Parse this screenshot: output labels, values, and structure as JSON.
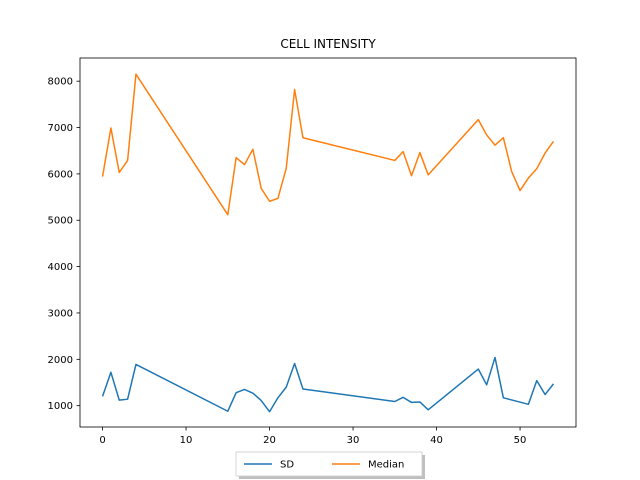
{
  "chart_data": {
    "type": "line",
    "title": "CELL INTENSITY",
    "xlabel": "",
    "ylabel": "",
    "xlim": [
      -2.7,
      56.7
    ],
    "ylim": [
      540,
      8500
    ],
    "xticks": [
      0,
      10,
      20,
      30,
      40,
      50
    ],
    "yticks": [
      1000,
      2000,
      3000,
      4000,
      5000,
      6000,
      7000,
      8000
    ],
    "grid": false,
    "legend_position": "bottom-center",
    "series": [
      {
        "name": "SD",
        "color": "#1f77b4",
        "points": [
          [
            0,
            1200
          ],
          [
            1,
            1720
          ],
          [
            2,
            1120
          ],
          [
            3,
            1140
          ],
          [
            4,
            1890
          ],
          [
            15,
            880
          ],
          [
            16,
            1280
          ],
          [
            17,
            1350
          ],
          [
            18,
            1270
          ],
          [
            19,
            1110
          ],
          [
            20,
            870
          ],
          [
            21,
            1170
          ],
          [
            22,
            1400
          ],
          [
            23,
            1910
          ],
          [
            24,
            1360
          ],
          [
            35,
            1090
          ],
          [
            36,
            1180
          ],
          [
            37,
            1070
          ],
          [
            38,
            1080
          ],
          [
            39,
            910
          ],
          [
            45,
            1790
          ],
          [
            46,
            1450
          ],
          [
            47,
            2040
          ],
          [
            48,
            1170
          ],
          [
            51,
            1030
          ],
          [
            52,
            1540
          ],
          [
            53,
            1240
          ],
          [
            54,
            1470
          ]
        ]
      },
      {
        "name": "Median",
        "color": "#ff7f0e",
        "points": [
          [
            0,
            5940
          ],
          [
            1,
            6990
          ],
          [
            2,
            6030
          ],
          [
            3,
            6290
          ],
          [
            4,
            8150
          ],
          [
            15,
            5120
          ],
          [
            16,
            6350
          ],
          [
            17,
            6200
          ],
          [
            18,
            6530
          ],
          [
            19,
            5690
          ],
          [
            20,
            5410
          ],
          [
            21,
            5470
          ],
          [
            22,
            6120
          ],
          [
            23,
            7820
          ],
          [
            24,
            6780
          ],
          [
            35,
            6290
          ],
          [
            36,
            6480
          ],
          [
            37,
            5960
          ],
          [
            38,
            6460
          ],
          [
            39,
            5980
          ],
          [
            45,
            7170
          ],
          [
            46,
            6840
          ],
          [
            47,
            6620
          ],
          [
            48,
            6780
          ],
          [
            49,
            6050
          ],
          [
            50,
            5640
          ],
          [
            51,
            5910
          ],
          [
            52,
            6110
          ],
          [
            53,
            6450
          ],
          [
            54,
            6700
          ]
        ]
      }
    ]
  }
}
